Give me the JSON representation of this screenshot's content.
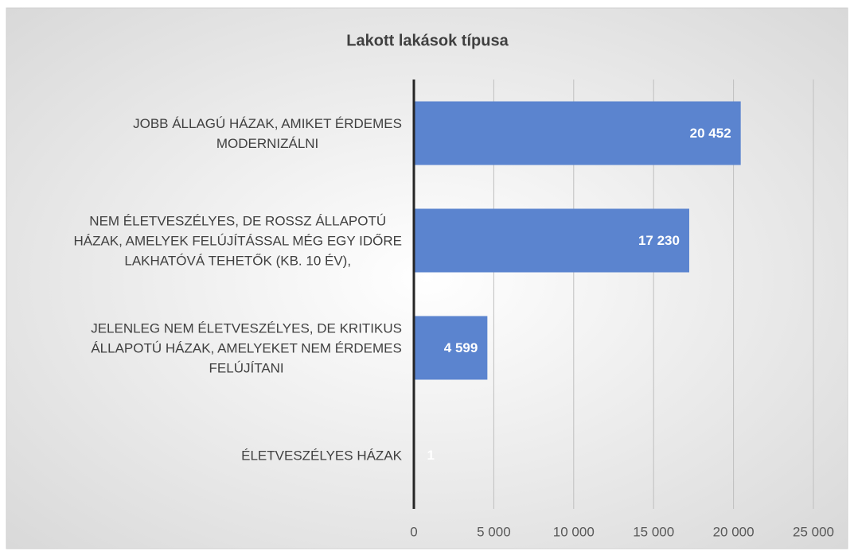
{
  "chart_data": {
    "type": "hbar",
    "title": "Lakott lakások típusa",
    "categories": [
      "JOBB ÁLLAGÚ HÁZAK, AMIKET ÉRDEMES\nMODERNIZÁLNI",
      "NEM ÉLETVESZÉLYES, DE ROSSZ ÁLLAPOTÚ\nHÁZAK, AMELYEK FELÚJÍTÁSSAL MÉG EGY IDŐRE\nLAKHATÓVÁ TEHETŐK (KB. 10 ÉV),",
      "JELENLEG NEM ÉLETVESZÉLYES, DE KRITIKUS\nÁLLAPOTÚ HÁZAK, AMELYEKET NEM ÉRDEMES\nFELÚJÍTANI",
      "ÉLETVESZÉLYES HÁZAK"
    ],
    "values": [
      20452,
      17230,
      4599,
      1
    ],
    "value_labels": [
      "20 452",
      "17 230",
      "4 599",
      "1"
    ],
    "color": "#5b84cf",
    "xlim": [
      0,
      25000
    ],
    "xticks": [
      0,
      {
        "value": 5000,
        "label": "5 000"
      },
      {
        "value": 10000,
        "label": "10 000"
      },
      {
        "value": 15000,
        "label": "15 000"
      },
      {
        "value": 20000,
        "label": "20 000"
      },
      {
        "value": 25000,
        "label": "25 000"
      }
    ],
    "grid": true
  }
}
